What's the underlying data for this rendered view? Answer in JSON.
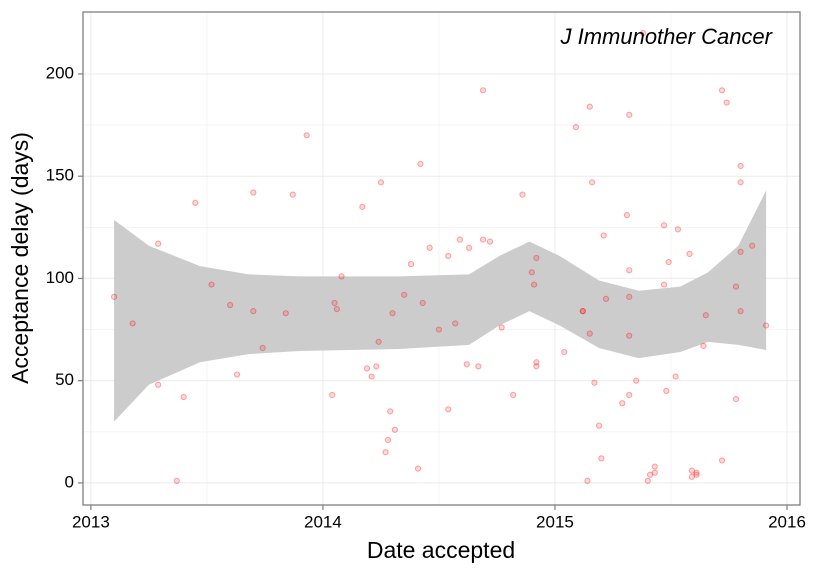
{
  "chart_data": {
    "type": "scatter",
    "annotation": "J Immunother Cancer",
    "x_label": "Date accepted",
    "y_label": "Acceptance delay (days)",
    "xlim": [
      2012.966,
      2016.056
    ],
    "ylim": [
      -10.8,
      230.3
    ],
    "xticks": [
      2013,
      2014,
      2015,
      2016
    ],
    "yticks": [
      0,
      50,
      100,
      150,
      200
    ],
    "grid": true,
    "minor_grid": true,
    "color": "#ff0000",
    "x": [
      2013.1,
      2013.18,
      2013.29,
      2013.29,
      2013.37,
      2013.4,
      2013.45,
      2013.52,
      2013.6,
      2013.63,
      2013.7,
      2013.7,
      2013.74,
      2013.84,
      2013.87,
      2013.93,
      2014.04,
      2014.05,
      2014.06,
      2014.08,
      2014.17,
      2014.19,
      2014.21,
      2014.23,
      2014.24,
      2014.25,
      2014.27,
      2014.28,
      2014.29,
      2014.3,
      2014.31,
      2014.35,
      2014.38,
      2014.41,
      2014.42,
      2014.43,
      2014.46,
      2014.5,
      2014.54,
      2014.54,
      2014.57,
      2014.59,
      2014.62,
      2014.63,
      2014.67,
      2014.69,
      2014.69,
      2014.72,
      2014.77,
      2014.82,
      2014.86,
      2014.9,
      2014.91,
      2014.92,
      2014.92,
      2014.92,
      2015.04,
      2015.09,
      2015.12,
      2015.12,
      2015.14,
      2015.15,
      2015.15,
      2015.16,
      2015.17,
      2015.19,
      2015.2,
      2015.21,
      2015.22,
      2015.29,
      2015.31,
      2015.32,
      2015.32,
      2015.32,
      2015.32,
      2015.32,
      2015.35,
      2015.38,
      2015.4,
      2015.41,
      2015.43,
      2015.43,
      2015.47,
      2015.47,
      2015.48,
      2015.49,
      2015.52,
      2015.53,
      2015.58,
      2015.59,
      2015.59,
      2015.61,
      2015.61,
      2015.64,
      2015.65,
      2015.72,
      2015.72,
      2015.74,
      2015.78,
      2015.78,
      2015.8,
      2015.8,
      2015.8,
      2015.8,
      2015.85,
      2015.91
    ],
    "values": [
      91,
      78,
      117,
      48,
      1,
      42,
      137,
      97,
      87,
      53,
      142,
      84,
      66,
      83,
      141,
      170,
      43,
      88,
      85,
      101,
      135,
      56,
      52,
      57,
      69,
      147,
      15,
      21,
      35,
      83,
      26,
      92,
      107,
      7,
      156,
      88,
      115,
      75,
      36,
      111,
      78,
      119,
      58,
      115,
      57,
      119,
      192,
      118,
      76,
      43,
      141,
      103,
      97,
      110,
      59,
      57,
      64,
      174,
      84,
      84,
      1,
      73,
      184,
      147,
      49,
      28,
      12,
      121,
      90,
      39,
      131,
      43,
      91,
      104,
      180,
      72,
      50,
      220,
      1,
      4,
      8,
      5,
      126,
      97,
      45,
      108,
      52,
      124,
      112,
      6,
      3,
      4,
      5,
      67,
      82,
      192,
      11,
      186,
      96,
      41,
      84,
      147,
      155,
      113,
      116,
      77
    ],
    "band": {
      "color": "#cccccc",
      "x": [
        2013.1,
        2013.25,
        2013.47,
        2013.68,
        2013.9,
        2014.33,
        2014.63,
        2014.76,
        2014.89,
        2015.02,
        2015.19,
        2015.36,
        2015.54,
        2015.66,
        2015.79,
        2015.91
      ],
      "upper": [
        128.6,
        116,
        106,
        102,
        101,
        101,
        102,
        111,
        118,
        111,
        99,
        94,
        96,
        103,
        116,
        143
      ],
      "lower": [
        30,
        48,
        59,
        63,
        64.5,
        65.5,
        67.5,
        77,
        84,
        77,
        66,
        61,
        64,
        69,
        67.5,
        65
      ]
    }
  }
}
